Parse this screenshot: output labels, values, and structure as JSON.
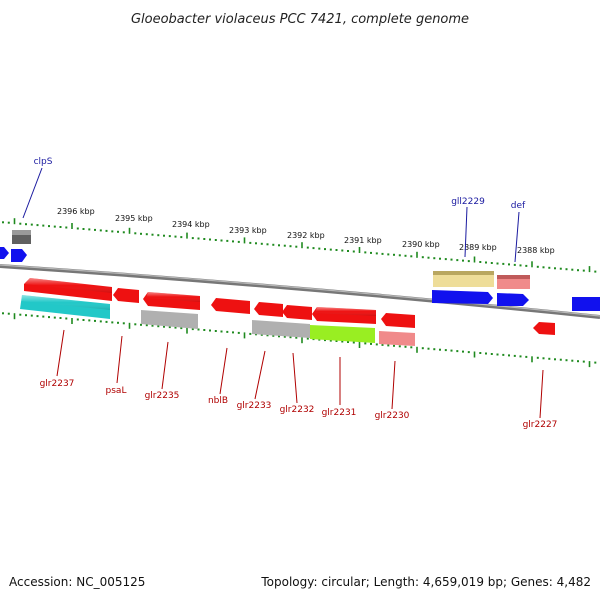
{
  "title": "Gloeobacter violaceus PCC 7421, complete genome",
  "footer": {
    "accession": "Accession: NC_005125",
    "summary": "Topology: circular; Length: 4,659,019 bp; Genes: 4,482"
  },
  "colors": {
    "backbone": "#8a8a8a",
    "tick": "#1f8a1f",
    "label_forward": "#1a1aa0",
    "label_reverse": "#b00000",
    "red": "#ee1111",
    "pink": "#f08a8a",
    "cyan": "#22c8c8",
    "gray": "#b0b0b0",
    "lime": "#99ee22",
    "yellow": "#eedd99",
    "blue": "#1111ee",
    "darkgray": "#606060"
  },
  "scale": {
    "tick_labels": [
      "2396 kbp",
      "2395 kbp",
      "2394 kbp",
      "2393 kbp",
      "2392 kbp",
      "2391 kbp",
      "2390 kbp",
      "2389 kbp",
      "2388 kbp"
    ]
  },
  "genes": [
    {
      "label": "clpS",
      "strand": "+",
      "color": "blue"
    },
    {
      "label": "gll2229",
      "strand": "+",
      "color": "blue"
    },
    {
      "label": "def",
      "strand": "+",
      "color": "blue"
    },
    {
      "label": "glr2237",
      "strand": "-",
      "color": "red"
    },
    {
      "label": "psaL",
      "strand": "-",
      "color": "red"
    },
    {
      "label": "glr2235",
      "strand": "-",
      "color": "red"
    },
    {
      "label": "nblB",
      "strand": "-",
      "color": "red"
    },
    {
      "label": "glr2233",
      "strand": "-",
      "color": "red"
    },
    {
      "label": "glr2232",
      "strand": "-",
      "color": "red"
    },
    {
      "label": "glr2231",
      "strand": "-",
      "color": "red"
    },
    {
      "label": "glr2230",
      "strand": "-",
      "color": "red"
    },
    {
      "label": "glr2227",
      "strand": "-",
      "color": "red"
    }
  ]
}
